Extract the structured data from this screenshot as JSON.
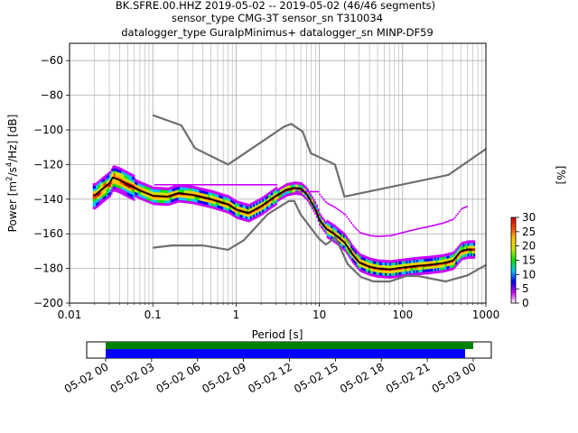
{
  "chart_data": {
    "type": "heatmap",
    "title_lines": [
      "BK.SFRE.00.HHZ   2019-05-02 -- 2019-05-02  (46/46 segments)",
      "sensor_type CMG-3T sensor_sn T310034",
      "datalogger_type GuralpMinimus+ datalogger_sn MINP-DF59"
    ],
    "xlabel": "Period [s]",
    "ylabel_parts": [
      "Power [m",
      "2",
      "/s",
      "4",
      "/Hz] [dB]"
    ],
    "xscale": "log",
    "xlim": [
      0.01,
      1000
    ],
    "ylim": [
      -200,
      -50
    ],
    "xticks": [
      0.01,
      0.1,
      1,
      10,
      100,
      1000
    ],
    "xtick_labels": [
      "0.01",
      "0.1",
      "1",
      "10",
      "100",
      "1000"
    ],
    "yticks": [
      -200,
      -180,
      -160,
      -140,
      -120,
      -100,
      -80,
      -60
    ],
    "ytick_labels": [
      "−200",
      "−180",
      "−160",
      "−140",
      "−120",
      "−100",
      "−80",
      "−60"
    ],
    "grid": true,
    "nhnm": [
      [
        0.1,
        -168
      ],
      [
        0.17,
        -166.7
      ],
      [
        0.4,
        -166.7
      ],
      [
        0.8,
        -169.2
      ],
      [
        1.24,
        -163.7
      ],
      [
        2.4,
        -148.6
      ],
      [
        4.3,
        -141.1
      ],
      [
        5.0,
        -141.1
      ],
      [
        6.0,
        -149
      ],
      [
        10,
        -163
      ],
      [
        12,
        -166.2
      ],
      [
        15.6,
        -162.1
      ],
      [
        21.9,
        -177.5
      ],
      [
        31.6,
        -185
      ],
      [
        45,
        -187.5
      ],
      [
        70,
        -187.5
      ],
      [
        110,
        -184.4
      ],
      [
        154,
        -184.4
      ],
      [
        328,
        -187.5
      ],
      [
        600,
        -184
      ],
      [
        1000,
        -178
      ]
    ],
    "nlnm": [
      [
        0.1,
        -91.5
      ],
      [
        0.22,
        -97.4
      ],
      [
        0.32,
        -110.5
      ],
      [
        0.8,
        -120
      ],
      [
        3.8,
        -98
      ],
      [
        4.6,
        -96.5
      ],
      [
        6.3,
        -101
      ],
      [
        7.9,
        -113.5
      ],
      [
        15.4,
        -120
      ],
      [
        20,
        -138.5
      ],
      [
        354.8,
        -126
      ],
      [
        1000,
        -111
      ]
    ],
    "mode_curve": [
      [
        0.02,
        -138
      ],
      [
        0.025,
        -134
      ],
      [
        0.03,
        -131
      ],
      [
        0.033,
        -127.5
      ],
      [
        0.04,
        -129
      ],
      [
        0.05,
        -131.5
      ],
      [
        0.07,
        -135
      ],
      [
        0.1,
        -138
      ],
      [
        0.15,
        -138.5
      ],
      [
        0.2,
        -136.5
      ],
      [
        0.3,
        -137.5
      ],
      [
        0.5,
        -140
      ],
      [
        0.8,
        -143
      ],
      [
        1.0,
        -146
      ],
      [
        1.4,
        -148
      ],
      [
        2.0,
        -144
      ],
      [
        3.0,
        -138
      ],
      [
        4.0,
        -134.5
      ],
      [
        5.0,
        -133.5
      ],
      [
        6.0,
        -134
      ],
      [
        7.0,
        -137
      ],
      [
        9.0,
        -146
      ],
      [
        10,
        -152
      ],
      [
        12,
        -157
      ],
      [
        15,
        -160
      ],
      [
        20,
        -165
      ],
      [
        25,
        -172
      ],
      [
        30,
        -176.5
      ],
      [
        40,
        -179
      ],
      [
        50,
        -180
      ],
      [
        70,
        -180.5
      ],
      [
        100,
        -179.5
      ],
      [
        150,
        -178.5
      ],
      [
        200,
        -178
      ],
      [
        300,
        -177
      ],
      [
        400,
        -175.5
      ],
      [
        500,
        -170
      ],
      [
        600,
        -169
      ],
      [
        700,
        -169
      ]
    ],
    "mode_curve_color": "#000000",
    "noise_model_color": "#6e6e6e",
    "colorbar": {
      "label": "[%]",
      "range": [
        0,
        30
      ],
      "ticks": [
        0,
        5,
        10,
        15,
        20,
        25,
        30
      ],
      "colors": [
        "#ffffff",
        "#c800ff",
        "#0000ff",
        "#00c8ff",
        "#00e600",
        "#c8e600",
        "#ffc800",
        "#ff4800",
        "#c80000"
      ]
    },
    "coverage": {
      "tick_labels": [
        "05-02 00",
        "05-02 03",
        "05-02 06",
        "05-02 09",
        "05-02 12",
        "05-02 15",
        "05-02 18",
        "05-02 21",
        "05-03 00"
      ],
      "data_bar_color": "#008000",
      "psd_bar_color": "#0000ff"
    }
  }
}
